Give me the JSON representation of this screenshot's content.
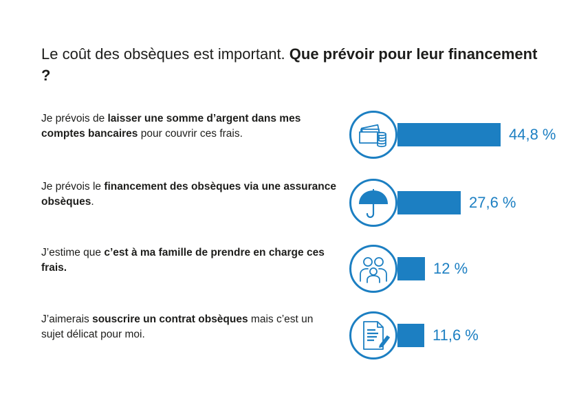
{
  "title": {
    "normal": "Le coût des obsèques est important. ",
    "bold": "Que prévoir pour leur financement ?"
  },
  "rows": [
    {
      "parts": [
        {
          "t": "Je prévois de ",
          "b": false
        },
        {
          "t": "laisser une somme d’argent dans mes comptes bancaires",
          "b": true
        },
        {
          "t": " pour couvrir ces frais.",
          "b": false
        }
      ],
      "icon": "money-bills-coins-icon",
      "value": 44.8,
      "label": "44,8 %"
    },
    {
      "parts": [
        {
          "t": "Je prévois le ",
          "b": false
        },
        {
          "t": "financement des obsèques via une assurance obsèques",
          "b": true
        },
        {
          "t": ".",
          "b": false
        }
      ],
      "icon": "umbrella-icon",
      "value": 27.6,
      "label": "27,6 %"
    },
    {
      "parts": [
        {
          "t": "J’estime que ",
          "b": false
        },
        {
          "t": "c’est à ma famille de prendre en charge ces frais.",
          "b": true
        }
      ],
      "icon": "family-icon",
      "value": 12,
      "label": "12 %"
    },
    {
      "parts": [
        {
          "t": "J’aimerais ",
          "b": false
        },
        {
          "t": "souscrire un contrat obsèques",
          "b": true
        },
        {
          "t": " mais c’est un sujet délicat pour moi.",
          "b": false
        }
      ],
      "icon": "contract-signing-icon",
      "value": 11.6,
      "label": "11,6 %"
    }
  ],
  "colors": {
    "accent": "#1c7fc2",
    "text": "#1d1d1b"
  },
  "chart_data": {
    "type": "bar",
    "orientation": "horizontal",
    "categories": [
      "Je prévois de laisser une somme d’argent dans mes comptes bancaires pour couvrir ces frais.",
      "Je prévois le financement des obsèques via une assurance obsèques.",
      "J’estime que c’est à ma famille de prendre en charge ces frais.",
      "J’aimerais souscrire un contrat obsèques mais c’est un sujet délicat pour moi."
    ],
    "values": [
      44.8,
      27.6,
      12,
      11.6
    ],
    "data_labels": [
      "44,8 %",
      "27,6 %",
      "12 %",
      "11,6 %"
    ],
    "title": "Le coût des obsèques est important. Que prévoir pour leur financement ?",
    "xlabel": "",
    "ylabel": "",
    "unit": "%",
    "grid": false
  }
}
